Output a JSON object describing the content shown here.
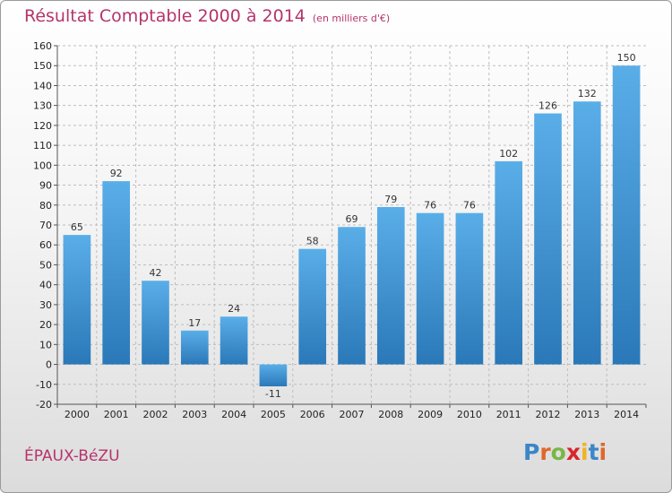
{
  "title": "Résultat Comptable 2000 à 2014",
  "subtitle": "(en milliers d'€)",
  "commune": "ÉPAUX-BéZU",
  "logo": {
    "letters": [
      "P",
      "r",
      "o",
      "x",
      "i",
      "t",
      "i"
    ],
    "colors": [
      "#3a86c8",
      "#e0672a",
      "#7ab648",
      "#d8262c",
      "#f0b323",
      "#3a86c8",
      "#e0672a"
    ]
  },
  "chart_data": {
    "type": "bar",
    "categories": [
      "2000",
      "2001",
      "2002",
      "2003",
      "2004",
      "2005",
      "2006",
      "2007",
      "2008",
      "2009",
      "2010",
      "2011",
      "2012",
      "2013",
      "2014"
    ],
    "values": [
      65,
      92,
      42,
      17,
      24,
      -11,
      58,
      69,
      79,
      76,
      76,
      102,
      126,
      132,
      150
    ],
    "data_labels": [
      "65",
      "92",
      "42",
      "17",
      "24",
      "-11",
      "58",
      "69",
      "79",
      "76",
      "76",
      "102",
      "126",
      "132",
      "150"
    ],
    "ylim": [
      -20,
      160
    ],
    "yticks": [
      -20,
      -10,
      0,
      10,
      20,
      30,
      40,
      50,
      60,
      70,
      80,
      90,
      100,
      110,
      120,
      130,
      140,
      150,
      160
    ],
    "ytick_labels": [
      "-20",
      "-10",
      "0",
      "10",
      "20",
      "30",
      "40",
      "50",
      "60",
      "70",
      "80",
      "90",
      "100",
      "110",
      "120",
      "130",
      "140",
      "150",
      "160"
    ],
    "grid": true,
    "bar_color_top": "#5aaee8",
    "bar_color_bottom": "#2a78b8"
  }
}
